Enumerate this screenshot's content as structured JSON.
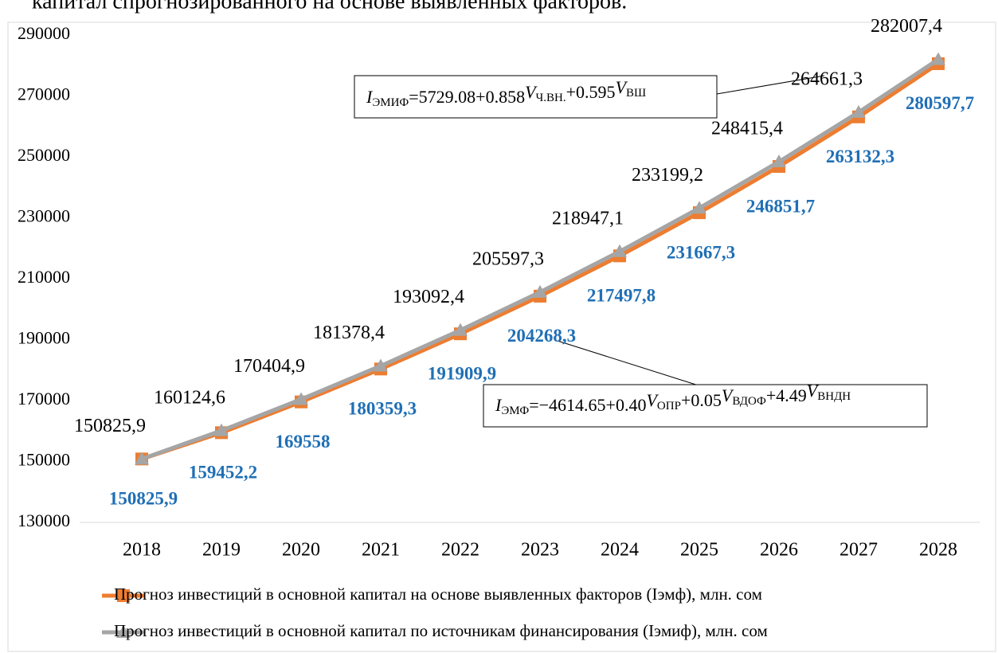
{
  "chart_data": {
    "type": "line",
    "caption": "капитал спрогнозированного на основе выявленных факторов.",
    "categories": [
      "2018",
      "2019",
      "2020",
      "2021",
      "2022",
      "2023",
      "2024",
      "2025",
      "2026",
      "2027",
      "2028"
    ],
    "series": [
      {
        "name": "Прогноз инвестиций в основной капитал  на основе выявленных факторов (Iэмф), млн. сом",
        "color": "#ed7d31",
        "marker": "square",
        "values": [
          150825.9,
          159452.2,
          169558,
          180359.3,
          191909.9,
          204268.3,
          217497.8,
          231667.3,
          246851.7,
          263132.3,
          280597.7
        ],
        "value_labels": [
          "150825,9",
          "159452,2",
          "169558",
          "180359,3",
          "191909,9",
          "204268,3",
          "217497,8",
          "231667,3",
          "246851,7",
          "263132,3",
          "280597,7"
        ]
      },
      {
        "name": "Прогноз инвестиций в основной капитал  по источникам финансирования (Iэмиф), млн. сом",
        "color": "#a5a5a5",
        "marker": "triangle",
        "values": [
          150825.9,
          160124.6,
          170404.9,
          181378.4,
          193092.4,
          205597.3,
          218947.1,
          233199.2,
          248415.4,
          264661.3,
          282007.4
        ],
        "value_labels": [
          "150825,9",
          "160124,6",
          "170404,9",
          "181378,4",
          "193092,4",
          "205597,3",
          "218947,1",
          "233199,2",
          "248415,4",
          "264661,3",
          "282007,4"
        ]
      }
    ],
    "annotations": [
      [
        "I",
        "ЭМИФ",
        "=5729.08+0.858",
        "V",
        "Ч.ВН.",
        "+0.595",
        "V",
        "ВШ"
      ],
      [
        "I",
        "ЭМФ",
        "=−4614.65+0.40",
        "V",
        "ОПР",
        "+0.05",
        "V",
        "ВДОФ",
        "+4.49",
        "V",
        "ВНДН"
      ]
    ],
    "ylim": [
      130000,
      290000
    ],
    "yticks": [
      130000,
      150000,
      170000,
      190000,
      210000,
      230000,
      250000,
      270000,
      290000
    ],
    "grid": false
  }
}
